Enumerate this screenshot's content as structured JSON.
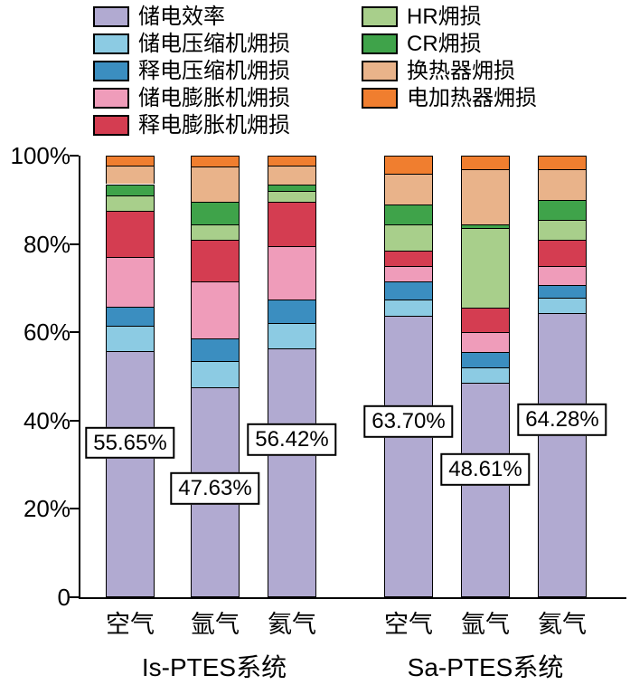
{
  "chart_data": {
    "type": "bar",
    "stacked": true,
    "percent_stacked": true,
    "title": "",
    "xlabel": "",
    "ylabel": "",
    "ylim": [
      0,
      100
    ],
    "grid": false,
    "legend_position": "top",
    "yticks": [
      "100%",
      "80%",
      "60%",
      "40%",
      "20%",
      "0"
    ],
    "ytick_values": [
      100,
      80,
      60,
      40,
      20,
      0
    ],
    "categories": [
      "空气",
      "氩气",
      "氦气",
      "空气",
      "氩气",
      "氦气"
    ],
    "groups": [
      {
        "label": "Is-PTES系统",
        "bars": [
          0,
          1,
          2
        ]
      },
      {
        "label": "Sa-PTES系统",
        "bars": [
          3,
          4,
          5
        ]
      }
    ],
    "series": [
      {
        "name": "储电效率",
        "color": "#b1aad1",
        "values": [
          55.65,
          47.63,
          56.42,
          63.7,
          48.61,
          64.28
        ]
      },
      {
        "name": "储电压缩机㶲损",
        "color": "#8ccbe3",
        "values": [
          5.9,
          5.9,
          5.6,
          3.8,
          3.4,
          3.5
        ]
      },
      {
        "name": "释电压缩机㶲损",
        "color": "#3b8ec0",
        "values": [
          4.3,
          5.0,
          5.3,
          4.0,
          3.5,
          3.0
        ]
      },
      {
        "name": "储电膨胀机㶲损",
        "color": "#ef9cba",
        "values": [
          11.2,
          13.0,
          12.2,
          3.5,
          4.5,
          4.2
        ]
      },
      {
        "name": "释电膨胀机㶲损",
        "color": "#d43d51",
        "values": [
          10.5,
          9.5,
          10.0,
          3.5,
          5.5,
          6.0
        ]
      },
      {
        "name": "HR㶲损",
        "color": "#a8cf8b",
        "values": [
          3.5,
          3.5,
          2.5,
          6.0,
          18.0,
          4.5
        ]
      },
      {
        "name": "CR㶲损",
        "color": "#3fa34a",
        "values": [
          2.5,
          5.0,
          1.5,
          4.5,
          1.0,
          4.5
        ]
      },
      {
        "name": "换热器㶲损",
        "color": "#e9b38a",
        "values": [
          4.3,
          8.0,
          4.2,
          7.0,
          12.5,
          7.0
        ]
      },
      {
        "name": "电加热器㶲损",
        "color": "#f07e2f",
        "values": [
          2.15,
          2.47,
          2.28,
          4.0,
          2.99,
          3.02
        ]
      }
    ],
    "bar_labels": [
      {
        "text": "55.65%",
        "y": 35.0
      },
      {
        "text": "47.63%",
        "y": 24.6
      },
      {
        "text": "56.42%",
        "y": 35.7
      },
      {
        "text": "63.70%",
        "y": 39.8
      },
      {
        "text": "48.61%",
        "y": 28.9
      },
      {
        "text": "64.28%",
        "y": 40.2
      }
    ],
    "legend_split": 5
  }
}
